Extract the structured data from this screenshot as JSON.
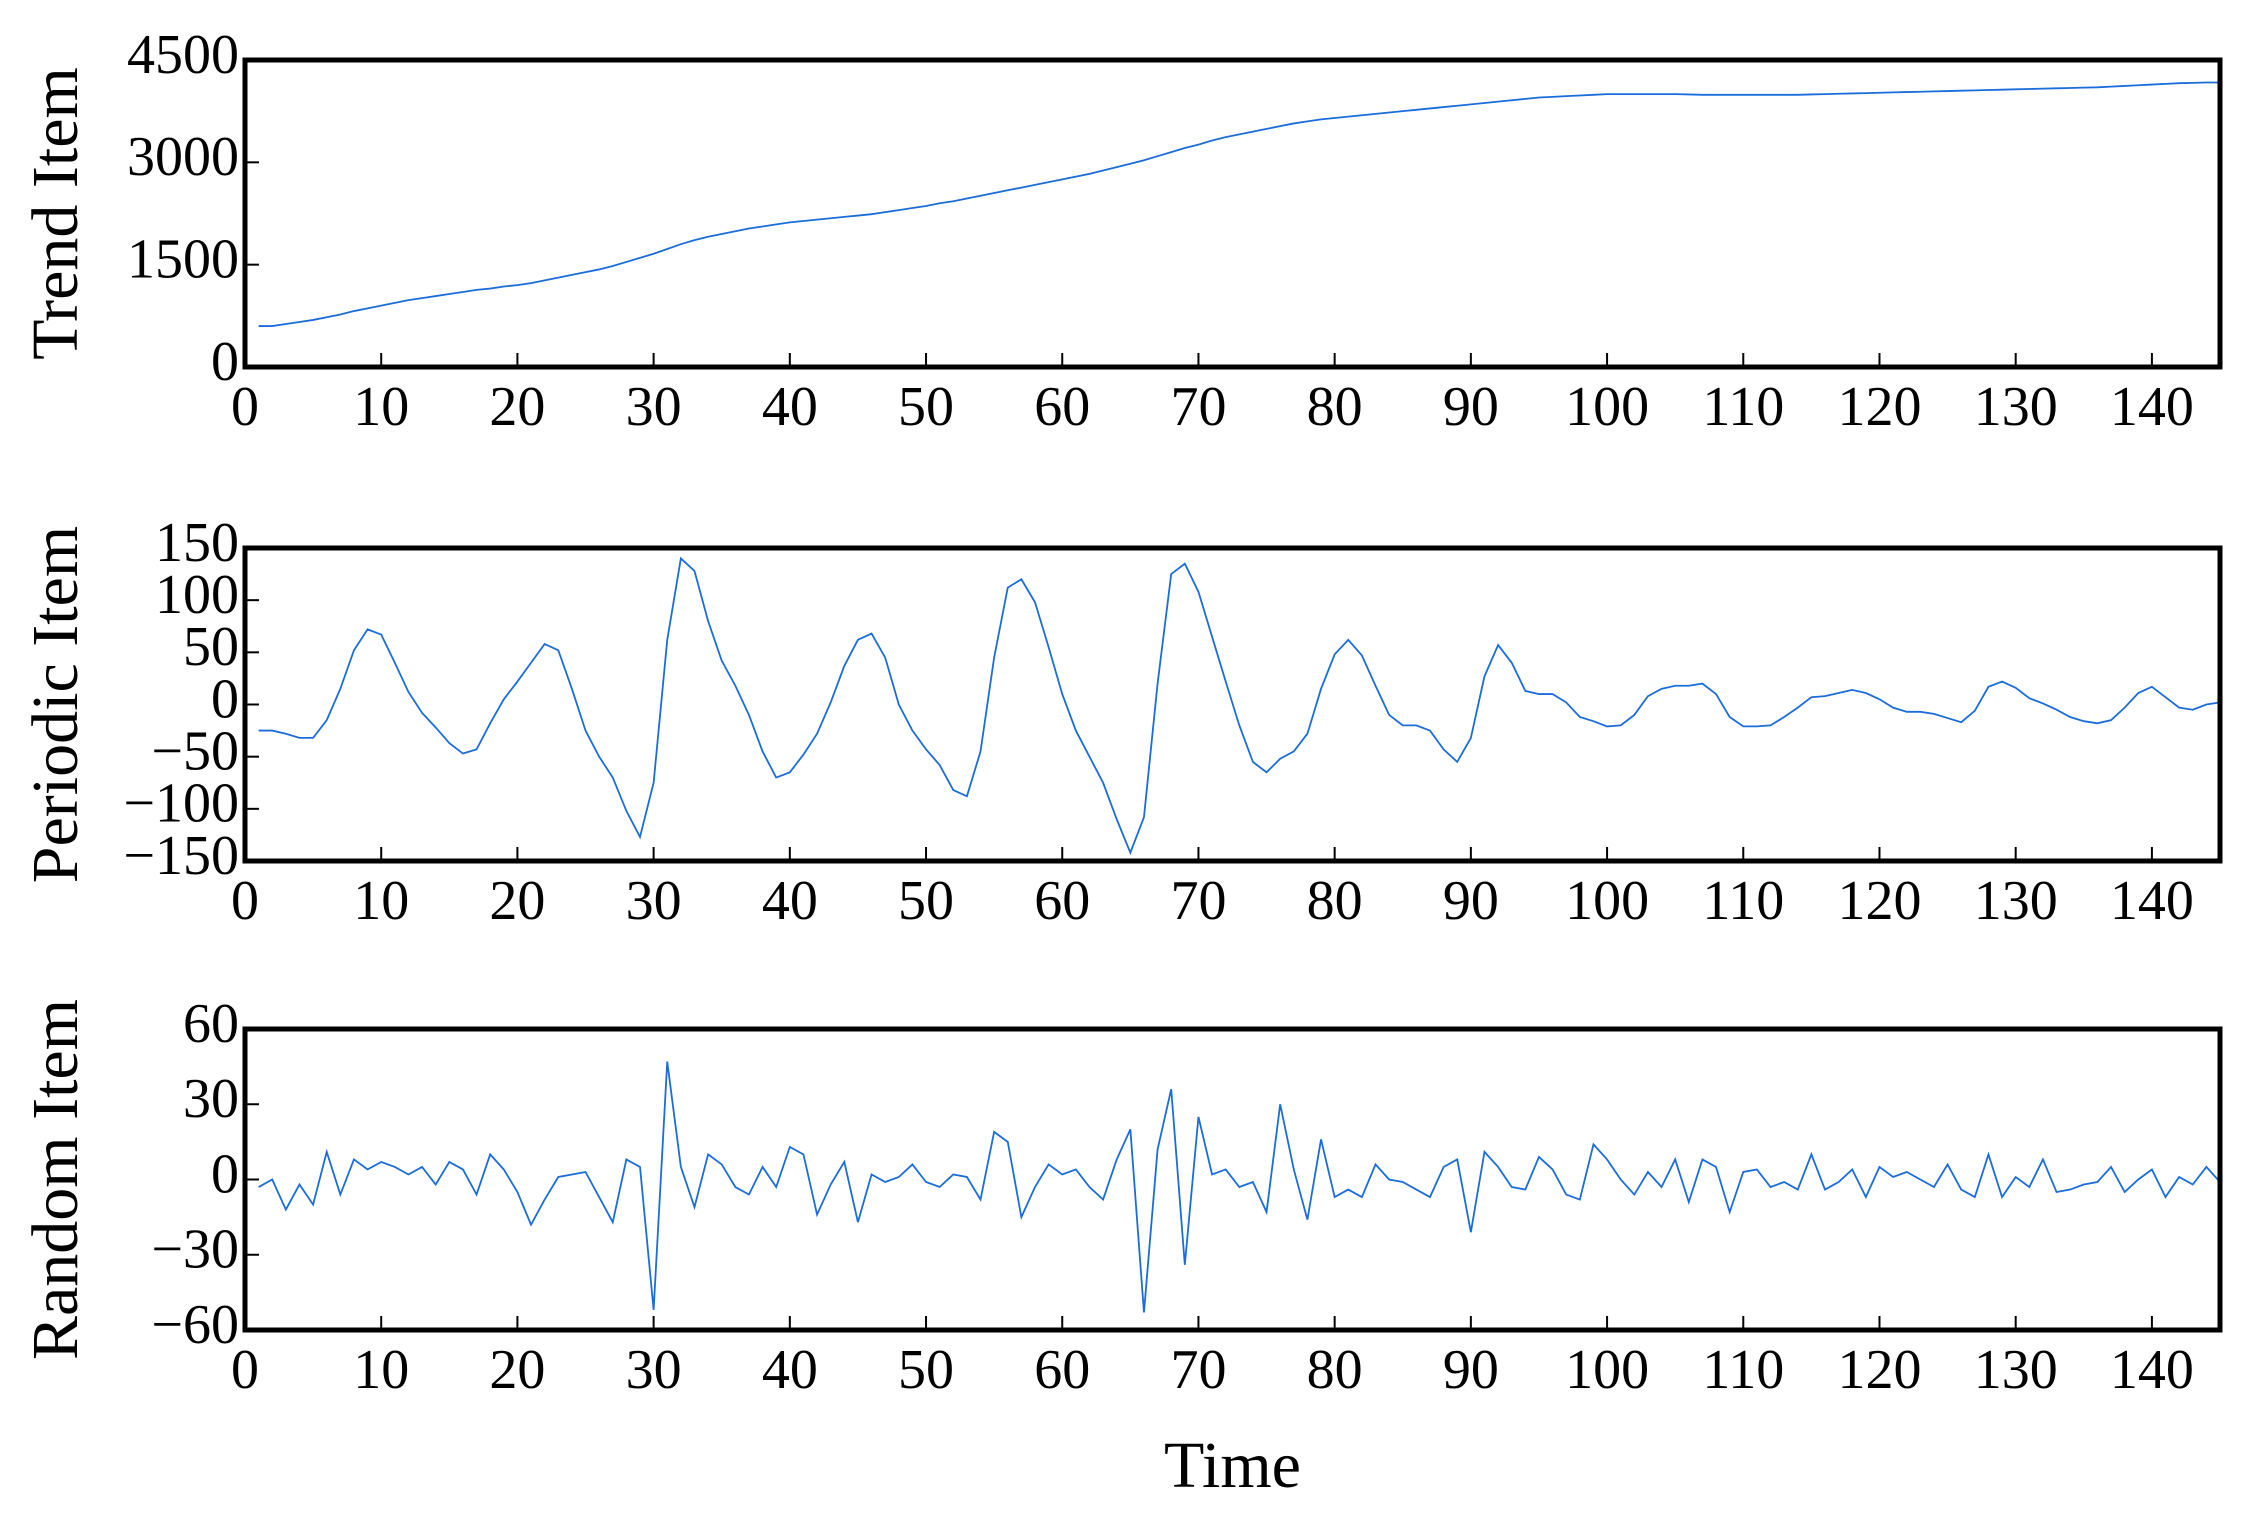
{
  "chart_data": [
    {
      "type": "line",
      "ylabel": "Trend Item",
      "x": [
        1,
        2,
        3,
        4,
        5,
        6,
        7,
        8,
        9,
        10,
        11,
        12,
        13,
        14,
        15,
        16,
        17,
        18,
        19,
        20,
        21,
        22,
        23,
        24,
        25,
        26,
        27,
        28,
        29,
        30,
        31,
        32,
        33,
        34,
        35,
        36,
        37,
        38,
        39,
        40,
        41,
        42,
        43,
        44,
        45,
        46,
        47,
        48,
        49,
        50,
        51,
        52,
        53,
        54,
        55,
        56,
        57,
        58,
        59,
        60,
        61,
        62,
        63,
        64,
        65,
        66,
        67,
        68,
        69,
        70,
        71,
        72,
        73,
        74,
        75,
        76,
        77,
        78,
        79,
        80,
        81,
        82,
        83,
        84,
        85,
        86,
        87,
        88,
        89,
        90,
        91,
        92,
        93,
        94,
        95,
        96,
        97,
        98,
        99,
        100,
        101,
        102,
        103,
        104,
        105,
        106,
        107,
        108,
        109,
        110,
        111,
        112,
        113,
        114,
        115,
        116,
        117,
        118,
        119,
        120,
        121,
        122,
        123,
        124,
        125,
        126,
        127,
        128,
        129,
        130,
        131,
        132,
        133,
        134,
        135,
        136,
        137,
        138,
        139,
        140,
        141,
        142,
        143,
        144,
        145
      ],
      "series": [
        {
          "color": "#1a6ddb",
          "values": [
            600,
            600,
            630,
            660,
            690,
            730,
            770,
            820,
            860,
            900,
            940,
            980,
            1010,
            1040,
            1070,
            1100,
            1130,
            1150,
            1180,
            1200,
            1230,
            1270,
            1310,
            1350,
            1390,
            1430,
            1480,
            1540,
            1600,
            1660,
            1730,
            1800,
            1860,
            1910,
            1950,
            1990,
            2030,
            2060,
            2090,
            2120,
            2140,
            2160,
            2180,
            2200,
            2220,
            2240,
            2270,
            2300,
            2330,
            2360,
            2400,
            2430,
            2470,
            2510,
            2550,
            2590,
            2630,
            2670,
            2710,
            2750,
            2790,
            2830,
            2880,
            2930,
            2980,
            3030,
            3090,
            3150,
            3210,
            3260,
            3320,
            3370,
            3410,
            3450,
            3490,
            3530,
            3570,
            3600,
            3630,
            3650,
            3670,
            3690,
            3710,
            3730,
            3750,
            3770,
            3790,
            3810,
            3830,
            3850,
            3870,
            3890,
            3910,
            3930,
            3950,
            3960,
            3970,
            3980,
            3990,
            4000,
            4000,
            4000,
            4000,
            4000,
            4000,
            3995,
            3990,
            3990,
            3990,
            3990,
            3990,
            3990,
            3990,
            3990,
            3995,
            4000,
            4005,
            4010,
            4015,
            4020,
            4025,
            4030,
            4035,
            4040,
            4045,
            4050,
            4055,
            4060,
            4065,
            4070,
            4075,
            4080,
            4085,
            4090,
            4095,
            4100,
            4110,
            4120,
            4130,
            4140,
            4150,
            4160,
            4165,
            4170,
            4170
          ]
        }
      ],
      "xlim": [
        0,
        145
      ],
      "xticks": [
        0,
        10,
        20,
        30,
        40,
        50,
        60,
        70,
        80,
        90,
        100,
        110,
        120,
        130,
        140
      ],
      "ylim": [
        0,
        4500
      ],
      "yticks": [
        0,
        1500,
        3000,
        4500
      ]
    },
    {
      "type": "line",
      "ylabel": "Periodic Item",
      "x": [
        1,
        2,
        3,
        4,
        5,
        6,
        7,
        8,
        9,
        10,
        11,
        12,
        13,
        14,
        15,
        16,
        17,
        18,
        19,
        20,
        21,
        22,
        23,
        24,
        25,
        26,
        27,
        28,
        29,
        30,
        31,
        32,
        33,
        34,
        35,
        36,
        37,
        38,
        39,
        40,
        41,
        42,
        43,
        44,
        45,
        46,
        47,
        48,
        49,
        50,
        51,
        52,
        53,
        54,
        55,
        56,
        57,
        58,
        59,
        60,
        61,
        62,
        63,
        64,
        65,
        66,
        67,
        68,
        69,
        70,
        71,
        72,
        73,
        74,
        75,
        76,
        77,
        78,
        79,
        80,
        81,
        82,
        83,
        84,
        85,
        86,
        87,
        88,
        89,
        90,
        91,
        92,
        93,
        94,
        95,
        96,
        97,
        98,
        99,
        100,
        101,
        102,
        103,
        104,
        105,
        106,
        107,
        108,
        109,
        110,
        111,
        112,
        113,
        114,
        115,
        116,
        117,
        118,
        119,
        120,
        121,
        122,
        123,
        124,
        125,
        126,
        127,
        128,
        129,
        130,
        131,
        132,
        133,
        134,
        135,
        136,
        137,
        138,
        139,
        140,
        141,
        142,
        143,
        144,
        145
      ],
      "series": [
        {
          "color": "#1a6ddb",
          "values": [
            -25,
            -25,
            -28,
            -32,
            -32,
            -15,
            15,
            52,
            72,
            67,
            40,
            12,
            -8,
            -22,
            -37,
            -47,
            -43,
            -18,
            5,
            22,
            40,
            58,
            52,
            15,
            -25,
            -50,
            -70,
            -102,
            -127,
            -75,
            62,
            140,
            128,
            80,
            42,
            18,
            -10,
            -45,
            -70,
            -65,
            -48,
            -28,
            2,
            37,
            62,
            68,
            45,
            0,
            -25,
            -43,
            -58,
            -82,
            -88,
            -45,
            45,
            112,
            120,
            98,
            55,
            10,
            -25,
            -50,
            -75,
            -110,
            -142,
            -108,
            20,
            125,
            135,
            108,
            65,
            22,
            -20,
            -55,
            -65,
            -52,
            -45,
            -28,
            15,
            48,
            62,
            47,
            18,
            -10,
            -20,
            -20,
            -25,
            -43,
            -55,
            -32,
            27,
            57,
            40,
            13,
            10,
            10,
            2,
            -12,
            -16,
            -21,
            -20,
            -10,
            8,
            15,
            18,
            18,
            20,
            10,
            -12,
            -21,
            -21,
            -20,
            -12,
            -3,
            7,
            8,
            11,
            14,
            11,
            5,
            -3,
            -7,
            -7,
            -9,
            -13,
            -17,
            -6,
            17,
            22,
            16,
            6,
            1,
            -5,
            -12,
            -16,
            -18,
            -15,
            -3,
            11,
            17,
            7,
            -3,
            -5,
            0,
            2
          ]
        }
      ],
      "xlim": [
        0,
        145
      ],
      "xticks": [
        0,
        10,
        20,
        30,
        40,
        50,
        60,
        70,
        80,
        90,
        100,
        110,
        120,
        130,
        140
      ],
      "ylim": [
        -150,
        150
      ],
      "yticks": [
        {
          "value": -150,
          "label": "−150"
        },
        {
          "value": -100,
          "label": "−100"
        },
        {
          "value": -50,
          "label": "−50"
        },
        0,
        50,
        100,
        150
      ]
    },
    {
      "type": "line",
      "ylabel": "Random Item",
      "xlabel": "Time",
      "x": [
        1,
        2,
        3,
        4,
        5,
        6,
        7,
        8,
        9,
        10,
        11,
        12,
        13,
        14,
        15,
        16,
        17,
        18,
        19,
        20,
        21,
        22,
        23,
        24,
        25,
        26,
        27,
        28,
        29,
        30,
        31,
        32,
        33,
        34,
        35,
        36,
        37,
        38,
        39,
        40,
        41,
        42,
        43,
        44,
        45,
        46,
        47,
        48,
        49,
        50,
        51,
        52,
        53,
        54,
        55,
        56,
        57,
        58,
        59,
        60,
        61,
        62,
        63,
        64,
        65,
        66,
        67,
        68,
        69,
        70,
        71,
        72,
        73,
        74,
        75,
        76,
        77,
        78,
        79,
        80,
        81,
        82,
        83,
        84,
        85,
        86,
        87,
        88,
        89,
        90,
        91,
        92,
        93,
        94,
        95,
        96,
        97,
        98,
        99,
        100,
        101,
        102,
        103,
        104,
        105,
        106,
        107,
        108,
        109,
        110,
        111,
        112,
        113,
        114,
        115,
        116,
        117,
        118,
        119,
        120,
        121,
        122,
        123,
        124,
        125,
        126,
        127,
        128,
        129,
        130,
        131,
        132,
        133,
        134,
        135,
        136,
        137,
        138,
        139,
        140,
        141,
        142,
        143,
        144,
        145
      ],
      "series": [
        {
          "color": "#1a6ddb",
          "values": [
            -3,
            0,
            -12,
            -2,
            -10,
            11,
            -6,
            8,
            4,
            7,
            5,
            2,
            5,
            -2,
            7,
            4,
            -6,
            10,
            4,
            -5,
            -18,
            -8,
            1,
            2,
            3,
            -7,
            -17,
            8,
            5,
            -52,
            47,
            5,
            -11,
            10,
            6,
            -3,
            -6,
            5,
            -3,
            13,
            10,
            -14,
            -2,
            7,
            -17,
            2,
            -1,
            1,
            6,
            -1,
            -3,
            2,
            1,
            -8,
            19,
            15,
            -15,
            -3,
            6,
            2,
            4,
            -3,
            -8,
            8,
            20,
            -53,
            12,
            36,
            -34,
            25,
            2,
            4,
            -3,
            -1,
            -13,
            30,
            4,
            -16,
            16,
            -7,
            -4,
            -7,
            6,
            0,
            -1,
            -4,
            -7,
            5,
            8,
            -21,
            11,
            5,
            -3,
            -4,
            9,
            4,
            -6,
            -8,
            14,
            8,
            0,
            -6,
            3,
            -3,
            8,
            -9,
            8,
            5,
            -13,
            3,
            4,
            -3,
            -1,
            -4,
            10,
            -4,
            -1,
            4,
            -7,
            5,
            1,
            3,
            0,
            -3,
            6,
            -4,
            -7,
            10,
            -7,
            1,
            -3,
            8,
            -5,
            -4,
            -2,
            -1,
            5,
            -5,
            0,
            4,
            -7,
            1,
            -2,
            5,
            -1
          ]
        }
      ],
      "xlim": [
        0,
        145
      ],
      "xticks": [
        0,
        10,
        20,
        30,
        40,
        50,
        60,
        70,
        80,
        90,
        100,
        110,
        120,
        130,
        140
      ],
      "ylim": [
        -60,
        60
      ],
      "yticks": [
        {
          "value": -60,
          "label": "−60"
        },
        {
          "value": -30,
          "label": "−30"
        },
        0,
        30,
        60
      ]
    }
  ]
}
